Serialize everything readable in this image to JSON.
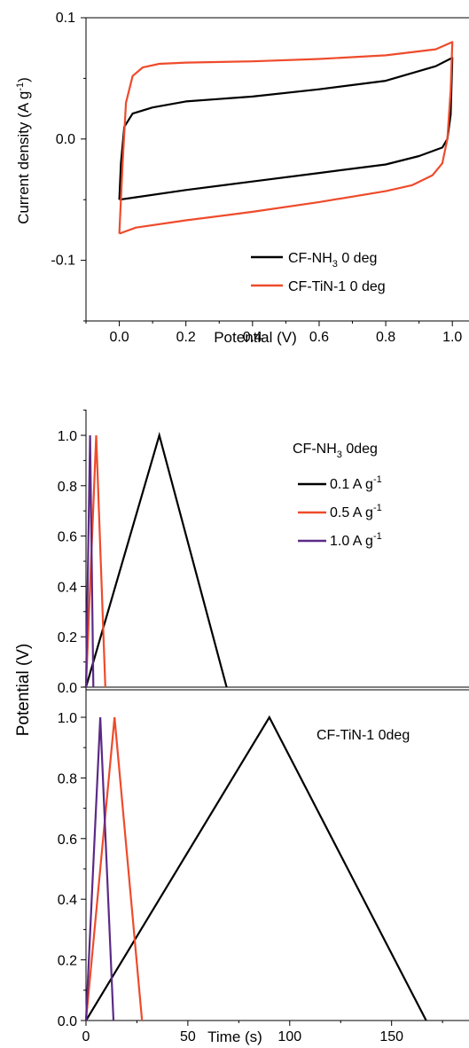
{
  "colors": {
    "black": "#000000",
    "red": "#ee4b2b",
    "purple": "#5b2a86"
  },
  "chart_data": [
    {
      "type": "line",
      "panel": "cv",
      "xlabel": "Potential (V)",
      "ylabel": "Current density (A g",
      "ylabel_sup": "-1",
      "ylabel_end": ")",
      "xlim": [
        -0.1,
        1.05
      ],
      "ylim": [
        -0.15,
        0.1
      ],
      "xticks": [
        0.0,
        0.2,
        0.4,
        0.6,
        0.8,
        1.0
      ],
      "xtick_labels": [
        "0.0",
        "0.2",
        "0.4",
        "0.6",
        "0.8",
        "1.0"
      ],
      "yticks": [
        -0.1,
        0.0,
        0.1
      ],
      "ytick_labels": [
        "-0.1",
        "0.0",
        "0.1"
      ],
      "legend_position": "bottom-right",
      "series": [
        {
          "name": "CF-NH",
          "name_sub": "3",
          "name_suffix": "  0 deg",
          "color": "#000000",
          "x": [
            0.0,
            0.005,
            0.015,
            0.04,
            0.1,
            0.2,
            0.4,
            0.6,
            0.8,
            0.95,
            1.0,
            0.995,
            0.985,
            0.97,
            0.9,
            0.8,
            0.6,
            0.4,
            0.2,
            0.05,
            0.0
          ],
          "y": [
            -0.05,
            -0.02,
            0.01,
            0.021,
            0.026,
            0.031,
            0.035,
            0.041,
            0.048,
            0.06,
            0.067,
            0.02,
            0.0,
            -0.007,
            -0.014,
            -0.021,
            -0.028,
            -0.035,
            -0.042,
            -0.048,
            -0.05
          ]
        },
        {
          "name": "CF-TiN-1 0 deg",
          "color": "#ee4b2b",
          "x": [
            0.0,
            0.01,
            0.02,
            0.04,
            0.07,
            0.12,
            0.2,
            0.4,
            0.6,
            0.8,
            0.95,
            1.0,
            0.995,
            0.985,
            0.97,
            0.94,
            0.88,
            0.8,
            0.6,
            0.4,
            0.2,
            0.05,
            0.0
          ],
          "y": [
            -0.078,
            -0.02,
            0.03,
            0.052,
            0.059,
            0.062,
            0.063,
            0.064,
            0.066,
            0.069,
            0.074,
            0.08,
            0.04,
            0.0,
            -0.02,
            -0.03,
            -0.038,
            -0.043,
            -0.052,
            -0.06,
            -0.067,
            -0.073,
            -0.078
          ]
        }
      ]
    },
    {
      "type": "line",
      "panel": "gcd-top",
      "annotation": "CF-NH",
      "annotation_sub": "3",
      "annotation_suffix": "  0deg",
      "ylabel": "Potential (V)",
      "xlim": [
        0,
        188
      ],
      "ylim": [
        0,
        1.1
      ],
      "yticks": [
        0.0,
        0.2,
        0.4,
        0.6,
        0.8,
        1.0
      ],
      "ytick_labels": [
        "0.0",
        "0.2",
        "0.4",
        "0.6",
        "0.8",
        "1.0"
      ],
      "legend_position": "top-right",
      "series": [
        {
          "name": "0.1 A g",
          "name_sup": "-1",
          "color": "#000000",
          "x": [
            0,
            36,
            69
          ],
          "y": [
            0,
            1.0,
            0
          ]
        },
        {
          "name": "0.5 A g",
          "name_sup": "-1",
          "color": "#ee4b2b",
          "x": [
            0,
            5,
            9.5
          ],
          "y": [
            0,
            1.0,
            0
          ]
        },
        {
          "name": "1.0 A g",
          "name_sup": "-1",
          "color": "#5b2a86",
          "x": [
            0,
            2,
            3.6
          ],
          "y": [
            0,
            1.0,
            0
          ]
        }
      ]
    },
    {
      "type": "line",
      "panel": "gcd-bottom",
      "annotation": "CF-TiN-1  0deg",
      "xlabel": "Time (s)",
      "xlim": [
        0,
        188
      ],
      "ylim": [
        0,
        1.1
      ],
      "xticks": [
        0,
        50,
        100,
        150
      ],
      "xtick_labels": [
        "0",
        "50",
        "100",
        "150"
      ],
      "yticks": [
        0.0,
        0.2,
        0.4,
        0.6,
        0.8,
        1.0
      ],
      "ytick_labels": [
        "0.0",
        "0.2",
        "0.4",
        "0.6",
        "0.8",
        "1.0"
      ],
      "series": [
        {
          "name": "0.1 A g-1",
          "color": "#000000",
          "x": [
            0,
            90,
            167
          ],
          "y": [
            0,
            1.0,
            0
          ]
        },
        {
          "name": "0.5 A g-1",
          "color": "#ee4b2b",
          "x": [
            0,
            14,
            27.5
          ],
          "y": [
            0,
            1.0,
            0
          ]
        },
        {
          "name": "1.0 A g-1",
          "color": "#5b2a86",
          "x": [
            0,
            7,
            13.5
          ],
          "y": [
            0,
            1.0,
            0
          ]
        }
      ]
    }
  ]
}
